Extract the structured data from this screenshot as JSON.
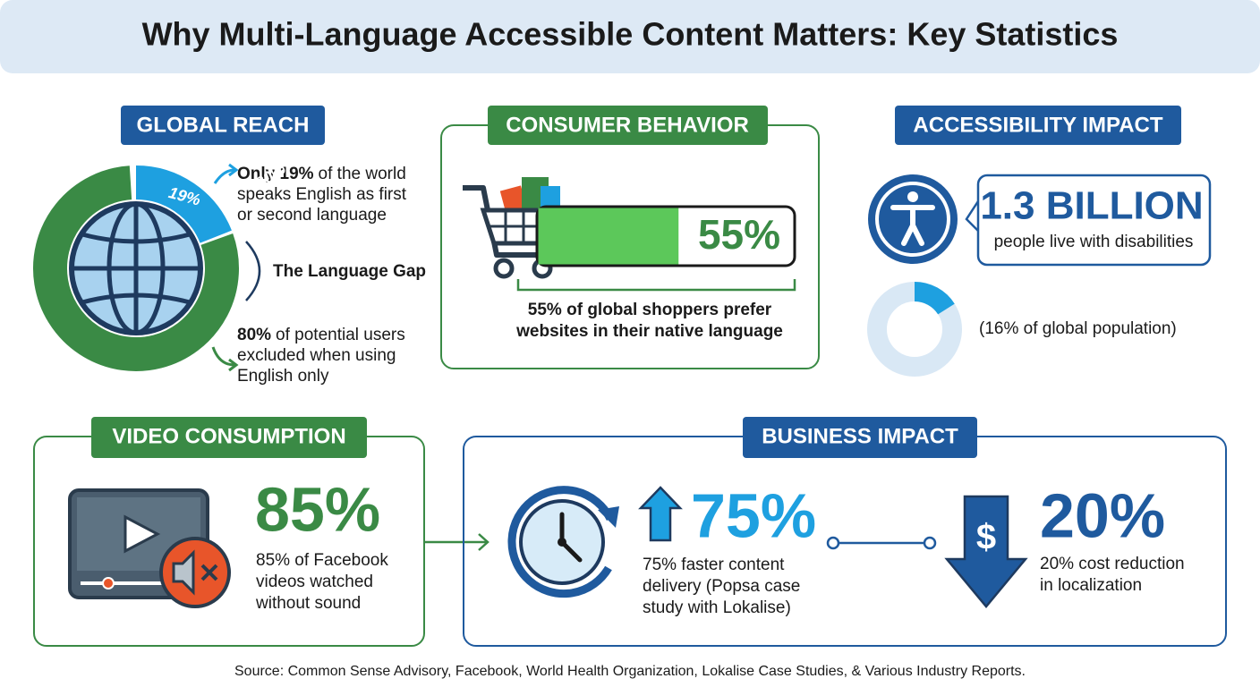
{
  "title": "Why Multi-Language Accessible Content Matters: Key Statistics",
  "global_reach": {
    "heading": "GLOBAL REACH",
    "english_share": {
      "value": 19,
      "label": "19%"
    },
    "excluded_share": {
      "value": 80,
      "label": "80%"
    },
    "english_bold": "Only 19%",
    "english_lines": [
      "of the world",
      "speaks English as first",
      "or second language"
    ],
    "gap_label": "The Language Gap",
    "excluded_bold": "80%",
    "excluded_lines": [
      "of potential users",
      "excluded when using",
      "English only"
    ]
  },
  "consumer_behavior": {
    "heading": "CONSUMER BEHAVIOR",
    "preference": {
      "value": 55,
      "label": "55%"
    },
    "caption_lines": [
      "55% of global shoppers prefer",
      "websites in their native language"
    ]
  },
  "accessibility_impact": {
    "heading": "ACCESSIBILITY IMPACT",
    "headline": "1.3 BILLION",
    "subline": "people live with disabilities",
    "population_share": {
      "value": 16,
      "label": "(16% of global population)"
    }
  },
  "video_consumption": {
    "heading": "VIDEO CONSUMPTION",
    "stat": "85%",
    "caption_lines": [
      "85% of Facebook",
      "videos watched",
      "without sound"
    ]
  },
  "business_impact": {
    "heading": "BUSINESS IMPACT",
    "delivery_stat": "75%",
    "delivery_lines": [
      "75% faster content",
      "delivery (Popsa case",
      "study with Lokalise)"
    ],
    "cost_icon": "$",
    "cost_stat": "20%",
    "cost_lines": [
      "20% cost reduction",
      "in localization"
    ]
  },
  "source": "Source: Common Sense Advisory, Facebook, World Health Organization, Lokalise Case Studies, & Various Industry Reports."
}
